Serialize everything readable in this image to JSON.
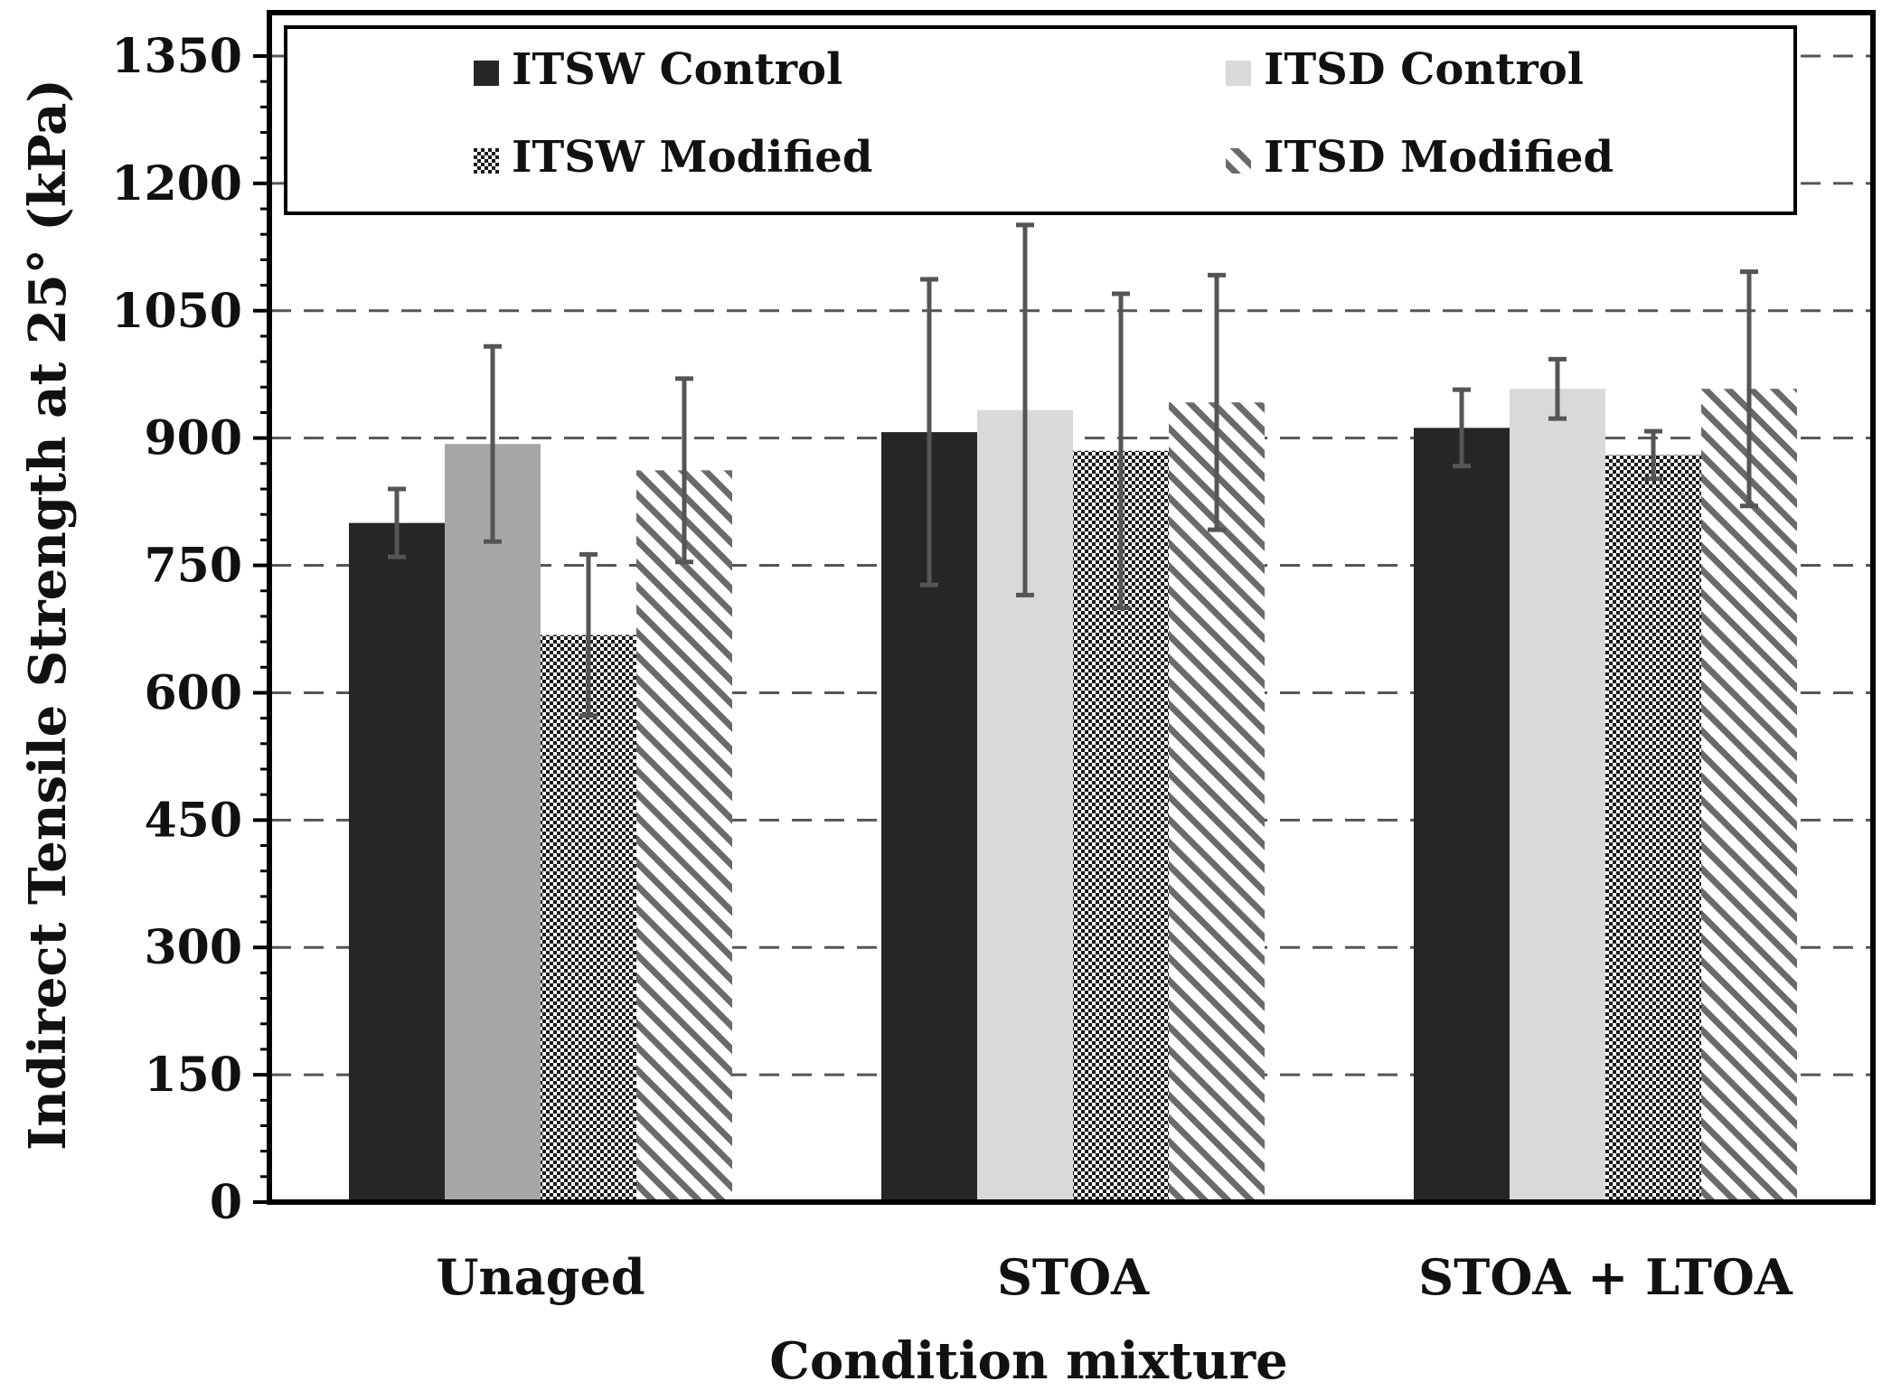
{
  "chart_data": {
    "type": "bar",
    "title": "",
    "xlabel": "Condition mixture",
    "ylabel": "Indirect Tensile Strength at 25° (kPa)",
    "ylim": [
      0,
      1350
    ],
    "yticks": [
      0,
      150,
      300,
      450,
      600,
      750,
      900,
      1050,
      1200,
      1350
    ],
    "ytick_labels": [
      "0",
      "150",
      "300",
      "450",
      "600",
      "750",
      "900",
      "1050",
      "1200",
      "1350"
    ],
    "grid": "horizontal dashed",
    "legend_position": "top, inside plot",
    "categories": [
      "Unaged",
      "STOA",
      "STOA + LTOA"
    ],
    "series": [
      {
        "name": "ITSW Control",
        "values": [
          800,
          907,
          912
        ],
        "errors": [
          40,
          180,
          45
        ],
        "color": "#262626",
        "pattern": "solid",
        "pattern_color": ""
      },
      {
        "name": "ITSD Control",
        "values": [
          893,
          933,
          958
        ],
        "errors": [
          115,
          218,
          35
        ],
        "color": "#a6a6a6",
        "pattern": "solid",
        "pattern_color": "",
        "legend_color": "#d9d9d9",
        "alt_colors": [
          "#a6a6a6",
          "#d9d9d9",
          "#d9d9d9"
        ]
      },
      {
        "name": "ITSW Modified",
        "values": [
          668,
          885,
          880
        ],
        "errors": [
          95,
          185,
          28
        ],
        "color": "#ffffff",
        "pattern": "checker",
        "pattern_color": "#1a1a1a"
      },
      {
        "name": "ITSD Modified",
        "values": [
          862,
          942,
          958
        ],
        "errors": [
          108,
          150,
          138
        ],
        "color": "#ffffff",
        "pattern": "diagonal",
        "pattern_color": "#6a6a6a"
      }
    ]
  },
  "colors": {
    "axis": "#000000",
    "grid": "#555555",
    "error_bar": "#555555",
    "legend_border": "#000000"
  }
}
